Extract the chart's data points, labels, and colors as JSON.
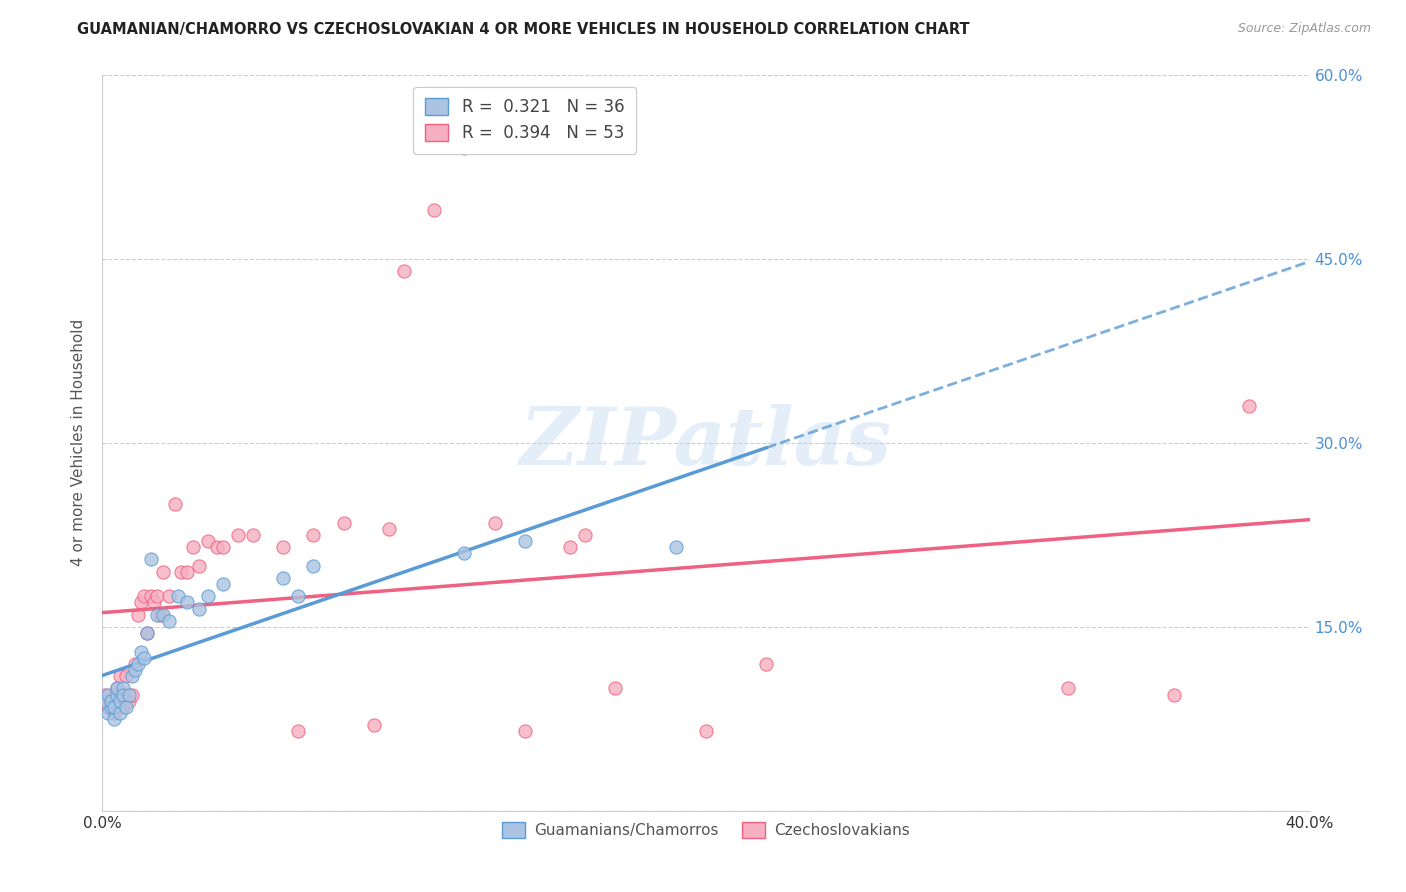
{
  "title": "GUAMANIAN/CHAMORRO VS CZECHOSLOVAKIAN 4 OR MORE VEHICLES IN HOUSEHOLD CORRELATION CHART",
  "source": "Source: ZipAtlas.com",
  "ylabel": "4 or more Vehicles in Household",
  "x_min": 0.0,
  "x_max": 0.4,
  "y_min": 0.0,
  "y_max": 0.6,
  "x_ticks": [
    0.0,
    0.1,
    0.2,
    0.3,
    0.4
  ],
  "x_tick_labels": [
    "0.0%",
    "",
    "",
    "",
    "40.0%"
  ],
  "y_ticks": [
    0.0,
    0.15,
    0.3,
    0.45,
    0.6
  ],
  "y_tick_labels_left": [
    "",
    "",
    "",
    "",
    ""
  ],
  "y_tick_labels_right": [
    "",
    "15.0%",
    "30.0%",
    "45.0%",
    "60.0%"
  ],
  "guamanian_color": "#aac4e2",
  "czechoslovakian_color": "#f5afc0",
  "guamanian_line_color": "#5b9bd5",
  "czechoslovakian_line_color": "#f06080",
  "legend_text_color": "#333333",
  "legend_value_color": "#3399ff",
  "R_guamanian": "0.321",
  "N_guamanian": "36",
  "R_czechoslovakian": "0.394",
  "N_czechoslovakian": "53",
  "guamanian_scatter_x": [
    0.001,
    0.002,
    0.002,
    0.003,
    0.003,
    0.004,
    0.004,
    0.005,
    0.005,
    0.006,
    0.006,
    0.007,
    0.007,
    0.008,
    0.009,
    0.01,
    0.011,
    0.012,
    0.013,
    0.014,
    0.015,
    0.016,
    0.018,
    0.02,
    0.022,
    0.025,
    0.028,
    0.032,
    0.035,
    0.04,
    0.06,
    0.065,
    0.07,
    0.12,
    0.14,
    0.19
  ],
  "guamanian_scatter_y": [
    0.09,
    0.08,
    0.095,
    0.085,
    0.09,
    0.075,
    0.085,
    0.095,
    0.1,
    0.08,
    0.09,
    0.1,
    0.095,
    0.085,
    0.095,
    0.11,
    0.115,
    0.12,
    0.13,
    0.125,
    0.145,
    0.205,
    0.16,
    0.16,
    0.155,
    0.175,
    0.17,
    0.165,
    0.175,
    0.185,
    0.19,
    0.175,
    0.2,
    0.21,
    0.22,
    0.215
  ],
  "czechoslovakian_scatter_x": [
    0.001,
    0.002,
    0.003,
    0.004,
    0.004,
    0.005,
    0.005,
    0.006,
    0.007,
    0.007,
    0.008,
    0.009,
    0.01,
    0.011,
    0.012,
    0.013,
    0.014,
    0.015,
    0.016,
    0.017,
    0.018,
    0.019,
    0.02,
    0.022,
    0.024,
    0.026,
    0.028,
    0.03,
    0.032,
    0.035,
    0.038,
    0.04,
    0.045,
    0.05,
    0.06,
    0.065,
    0.07,
    0.08,
    0.09,
    0.095,
    0.1,
    0.11,
    0.12,
    0.13,
    0.14,
    0.155,
    0.16,
    0.17,
    0.2,
    0.22,
    0.32,
    0.355,
    0.38
  ],
  "czechoslovakian_scatter_y": [
    0.095,
    0.085,
    0.09,
    0.08,
    0.095,
    0.1,
    0.09,
    0.11,
    0.085,
    0.095,
    0.11,
    0.09,
    0.095,
    0.12,
    0.16,
    0.17,
    0.175,
    0.145,
    0.175,
    0.17,
    0.175,
    0.16,
    0.195,
    0.175,
    0.25,
    0.195,
    0.195,
    0.215,
    0.2,
    0.22,
    0.215,
    0.215,
    0.225,
    0.225,
    0.215,
    0.065,
    0.225,
    0.235,
    0.07,
    0.23,
    0.44,
    0.49,
    0.54,
    0.235,
    0.065,
    0.215,
    0.225,
    0.1,
    0.065,
    0.12,
    0.1,
    0.095,
    0.33
  ],
  "watermark": "ZIPatlas",
  "background_color": "#ffffff",
  "grid_color": "#cccccc",
  "guam_line_x_end": 0.22,
  "czech_line_x_end": 0.4
}
